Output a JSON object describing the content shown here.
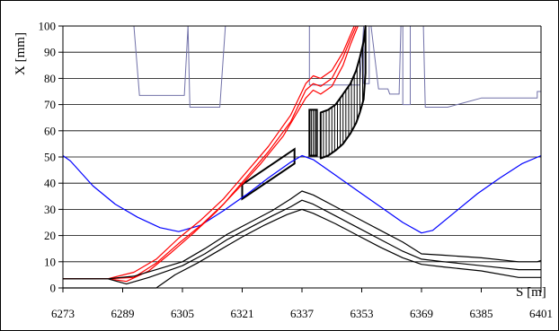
{
  "chart_data": {
    "type": "line",
    "title": "",
    "xlabel": "S [m]",
    "ylabel": "X [mm]",
    "xlim": [
      6273,
      6401
    ],
    "ylim": [
      0,
      100
    ],
    "x_ticks": [
      6273,
      6289,
      6305,
      6321,
      6337,
      6353,
      6369,
      6385,
      6401
    ],
    "y_ticks": [
      0,
      10,
      20,
      30,
      40,
      50,
      60,
      70,
      80,
      90,
      100
    ],
    "grid": "horizontal",
    "legend": "none",
    "series": [
      {
        "color": "#d0d0e8",
        "style": "aperture-outline",
        "points": [
          [
            6273,
            100
          ],
          [
            6293.5,
            100
          ],
          [
            6293.5,
            100
          ],
          [
            6303,
            100
          ],
          [
            6303,
            100
          ],
          [
            6303,
            100
          ],
          [
            6305,
            100
          ],
          [
            6305,
            100
          ],
          [
            6305,
            100
          ],
          [
            6307,
            100
          ],
          [
            6307,
            100
          ],
          [
            6315,
            100
          ],
          [
            6315,
            100
          ],
          [
            6316.5,
            100
          ],
          [
            6316.5,
            100
          ]
        ]
      },
      {
        "color": "#7070a8",
        "style": "aperture-limit",
        "points": [
          [
            6292,
            100
          ],
          [
            6293.5,
            73.5
          ],
          [
            6305.5,
            73.5
          ],
          [
            6306.5,
            100
          ],
          [
            6306.5,
            100
          ],
          [
            6307,
            69
          ],
          [
            6315,
            69
          ],
          [
            6316.5,
            100
          ],
          [
            6339,
            100
          ],
          [
            6339,
            77.5
          ],
          [
            6352.5,
            77.5
          ],
          [
            6353.5,
            100
          ],
          [
            6353.5,
            78
          ],
          [
            6355,
            78
          ],
          [
            6355,
            100
          ],
          [
            6355.5,
            100
          ],
          [
            6357.5,
            76
          ],
          [
            6360,
            76
          ],
          [
            6360.5,
            74
          ],
          [
            6363,
            74
          ],
          [
            6363.5,
            100
          ],
          [
            6364,
            100
          ],
          [
            6364,
            70
          ],
          [
            6366,
            70
          ],
          [
            6366,
            100
          ],
          [
            6369.5,
            100
          ],
          [
            6370,
            69
          ],
          [
            6376,
            69
          ],
          [
            6385,
            72.5
          ],
          [
            6400,
            72.5
          ],
          [
            6400,
            75
          ],
          [
            6401,
            75
          ]
        ]
      },
      {
        "color": "#0000ff",
        "style": "envelope",
        "points": [
          [
            6273,
            50.5
          ],
          [
            6275,
            48.5
          ],
          [
            6281,
            39
          ],
          [
            6287,
            32
          ],
          [
            6293,
            27
          ],
          [
            6299,
            23
          ],
          [
            6304,
            21.5
          ],
          [
            6310,
            24
          ],
          [
            6316,
            29.5
          ],
          [
            6322,
            35.5
          ],
          [
            6328,
            42
          ],
          [
            6334,
            48
          ],
          [
            6337,
            50.5
          ],
          [
            6340,
            49
          ],
          [
            6346,
            43
          ],
          [
            6352,
            37
          ],
          [
            6358,
            31
          ],
          [
            6364,
            25
          ],
          [
            6369,
            21
          ],
          [
            6372,
            22
          ],
          [
            6378,
            29
          ],
          [
            6384,
            36
          ],
          [
            6390,
            42
          ],
          [
            6396,
            47.5
          ],
          [
            6401,
            50.5
          ]
        ]
      },
      {
        "color": "#ff0000",
        "style": "trajectory-upper",
        "points": [
          [
            6273,
            3.5
          ],
          [
            6285,
            3.5
          ],
          [
            6292,
            6
          ],
          [
            6298,
            11
          ],
          [
            6304,
            19
          ],
          [
            6310,
            26
          ],
          [
            6316,
            34
          ],
          [
            6322,
            44
          ],
          [
            6328,
            54
          ],
          [
            6334,
            66
          ],
          [
            6338,
            78
          ],
          [
            6340,
            81
          ],
          [
            6342,
            80
          ],
          [
            6345,
            83
          ],
          [
            6348,
            90
          ],
          [
            6351,
            100
          ]
        ]
      },
      {
        "color": "#ff0000",
        "style": "trajectory-center",
        "points": [
          [
            6273,
            3.5
          ],
          [
            6285,
            3.5
          ],
          [
            6292,
            4
          ],
          [
            6298,
            9.5
          ],
          [
            6304,
            17
          ],
          [
            6310,
            24
          ],
          [
            6316,
            32
          ],
          [
            6322,
            42
          ],
          [
            6328,
            52
          ],
          [
            6334,
            63.5
          ],
          [
            6338,
            75.5
          ],
          [
            6340,
            78
          ],
          [
            6342,
            77
          ],
          [
            6345,
            80
          ],
          [
            6348,
            88
          ],
          [
            6350,
            95
          ],
          [
            6351.5,
            100
          ]
        ]
      },
      {
        "color": "#ff0000",
        "style": "trajectory-lower",
        "points": [
          [
            6273,
            3.5
          ],
          [
            6285,
            3.5
          ],
          [
            6290,
            2.5
          ],
          [
            6296,
            6.5
          ],
          [
            6302,
            13.5
          ],
          [
            6308,
            21
          ],
          [
            6314,
            29
          ],
          [
            6320,
            38
          ],
          [
            6326,
            47.5
          ],
          [
            6332,
            58
          ],
          [
            6338,
            72.5
          ],
          [
            6340,
            75.5
          ],
          [
            6342,
            74
          ],
          [
            6345,
            77
          ],
          [
            6348,
            85
          ],
          [
            6350,
            93
          ],
          [
            6352,
            100
          ]
        ]
      },
      {
        "color": "#000000",
        "style": "circulating-upper",
        "points": [
          [
            6273,
            3.5
          ],
          [
            6285,
            3.5
          ],
          [
            6292,
            4.5
          ],
          [
            6298,
            7
          ],
          [
            6305,
            10
          ],
          [
            6311,
            15
          ],
          [
            6317,
            20.5
          ],
          [
            6323,
            25
          ],
          [
            6329,
            29.5
          ],
          [
            6334,
            34
          ],
          [
            6337,
            37
          ],
          [
            6340,
            35.5
          ],
          [
            6346,
            31
          ],
          [
            6352,
            26.5
          ],
          [
            6358,
            22
          ],
          [
            6364,
            17.5
          ],
          [
            6369,
            13
          ],
          [
            6375,
            12.5
          ],
          [
            6385,
            11.5
          ],
          [
            6395,
            10
          ],
          [
            6400,
            10
          ],
          [
            6401,
            10.5
          ]
        ]
      },
      {
        "color": "#000000",
        "style": "circulating-center",
        "points": [
          [
            6273,
            3.5
          ],
          [
            6285,
            3.5
          ],
          [
            6290,
            1.5
          ],
          [
            6296,
            4
          ],
          [
            6305,
            8.5
          ],
          [
            6311,
            13
          ],
          [
            6317,
            18.5
          ],
          [
            6323,
            23
          ],
          [
            6329,
            27.5
          ],
          [
            6334,
            31
          ],
          [
            6337,
            33.5
          ],
          [
            6340,
            32
          ],
          [
            6346,
            27.5
          ],
          [
            6352,
            23
          ],
          [
            6358,
            18.5
          ],
          [
            6364,
            14
          ],
          [
            6369,
            11
          ],
          [
            6375,
            10
          ],
          [
            6385,
            8.5
          ],
          [
            6395,
            7
          ],
          [
            6401,
            7
          ]
        ]
      },
      {
        "color": "#000000",
        "style": "circulating-lower",
        "points": [
          [
            6273,
            0
          ],
          [
            6298,
            0
          ],
          [
            6303,
            5
          ],
          [
            6309,
            9.5
          ],
          [
            6315,
            14.5
          ],
          [
            6321,
            19.5
          ],
          [
            6327,
            24
          ],
          [
            6333,
            28
          ],
          [
            6337,
            30
          ],
          [
            6340,
            28.5
          ],
          [
            6346,
            24.5
          ],
          [
            6352,
            20
          ],
          [
            6358,
            15.5
          ],
          [
            6364,
            11.5
          ],
          [
            6369,
            9
          ],
          [
            6375,
            8
          ],
          [
            6385,
            6.5
          ],
          [
            6395,
            4
          ],
          [
            6401,
            4
          ]
        ]
      }
    ],
    "elements": [
      {
        "name": "septum-parallelogram",
        "points": [
          [
            6321,
            34
          ],
          [
            6321,
            39.5
          ],
          [
            6335,
            53
          ],
          [
            6335,
            47.5
          ]
        ]
      },
      {
        "name": "hatched-block-left",
        "points": [
          [
            6339,
            50.5
          ],
          [
            6339,
            68
          ],
          [
            6341,
            68
          ],
          [
            6341,
            50.5
          ]
        ]
      },
      {
        "name": "hatched-block-curved",
        "upper": [
          [
            6342,
            67
          ],
          [
            6344,
            68
          ],
          [
            6346,
            70
          ],
          [
            6348,
            74
          ],
          [
            6350,
            78
          ],
          [
            6351.5,
            83
          ],
          [
            6352.5,
            88
          ],
          [
            6353.5,
            94
          ],
          [
            6354,
            100
          ]
        ],
        "lower": [
          [
            6342,
            49.5
          ],
          [
            6344,
            50.5
          ],
          [
            6346,
            52.5
          ],
          [
            6348,
            55
          ],
          [
            6350,
            59
          ],
          [
            6351.5,
            63
          ],
          [
            6352.5,
            67
          ],
          [
            6353.5,
            72
          ],
          [
            6354,
            82
          ]
        ]
      }
    ]
  }
}
